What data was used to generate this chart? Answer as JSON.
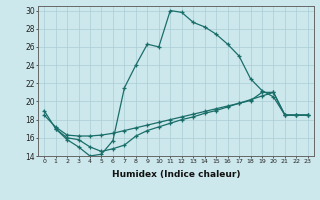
{
  "xlabel": "Humidex (Indice chaleur)",
  "background_color": "#cde8ec",
  "grid_color": "#aacdd4",
  "line_color": "#1a6e6a",
  "xlim": [
    -0.5,
    23.5
  ],
  "ylim": [
    14,
    30.5
  ],
  "xticks": [
    0,
    1,
    2,
    3,
    4,
    5,
    6,
    7,
    8,
    9,
    10,
    11,
    12,
    13,
    14,
    15,
    16,
    17,
    18,
    19,
    20,
    21,
    22,
    23
  ],
  "yticks": [
    14,
    16,
    18,
    20,
    22,
    24,
    26,
    28,
    30
  ],
  "line1_x": [
    0,
    1,
    2,
    3,
    4,
    5,
    6,
    7,
    8,
    9,
    10,
    11,
    12,
    13,
    14,
    15,
    16,
    17,
    18,
    19,
    20,
    21,
    22,
    23
  ],
  "line1_y": [
    19,
    17,
    15.8,
    15,
    14,
    14.2,
    15.7,
    21.5,
    24,
    26.3,
    26,
    30,
    29.8,
    28.7,
    28.2,
    27.4,
    26.3,
    25,
    22.5,
    21.2,
    20.5,
    18.5,
    18.5,
    18.5
  ],
  "line2_x": [
    1,
    2,
    3,
    4,
    5,
    6,
    7,
    8,
    9,
    10,
    11,
    12,
    13,
    14,
    15,
    16,
    17,
    18,
    19,
    20,
    21,
    22,
    23
  ],
  "line2_y": [
    17,
    16,
    15.8,
    15,
    14.5,
    14.8,
    15.2,
    16.2,
    16.8,
    17.2,
    17.6,
    18.0,
    18.3,
    18.7,
    19.0,
    19.4,
    19.8,
    20.2,
    20.6,
    21.0,
    18.5,
    18.5,
    18.5
  ],
  "line3_x": [
    0,
    1,
    2,
    3,
    4,
    5,
    6,
    7,
    8,
    9,
    10,
    11,
    12,
    13,
    14,
    15,
    16,
    17,
    18,
    19,
    20,
    21,
    22,
    23
  ],
  "line3_y": [
    18.5,
    17.2,
    16.3,
    16.2,
    16.2,
    16.3,
    16.5,
    16.8,
    17.1,
    17.4,
    17.7,
    18.0,
    18.3,
    18.6,
    18.9,
    19.2,
    19.5,
    19.8,
    20.1,
    21.0,
    21.0,
    18.5,
    18.5,
    18.5
  ]
}
